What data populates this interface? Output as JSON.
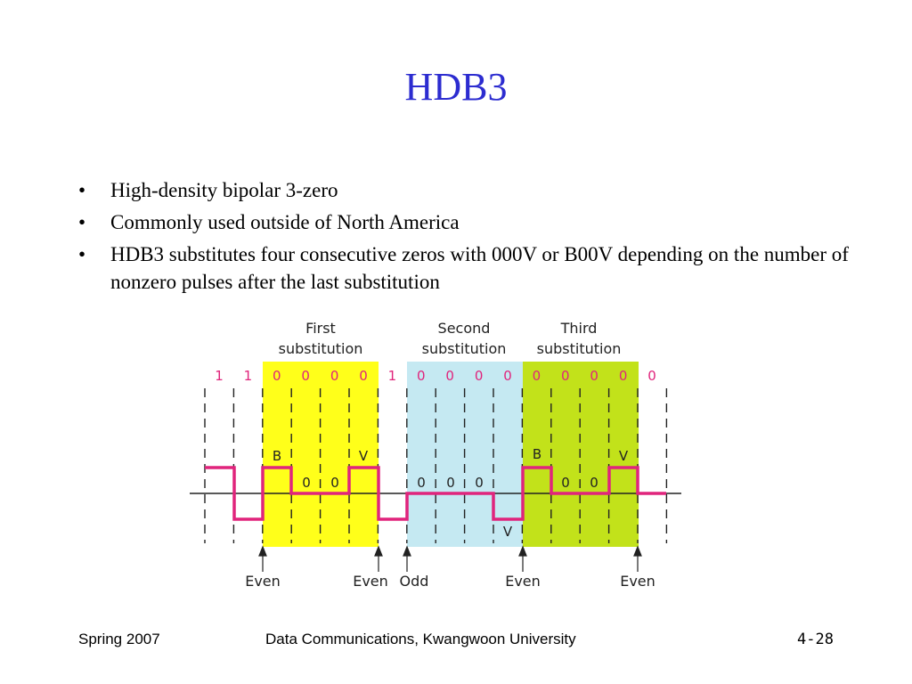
{
  "slide": {
    "title": "HDB3",
    "bullets": [
      "High-density bipolar 3-zero",
      "Commonly used outside of North America",
      "HDB3 substitutes four consecutive zeros with 000V or B00V depending on the number of nonzero pulses after the last substitution"
    ]
  },
  "diagram": {
    "regions": [
      {
        "label_line1": "First",
        "label_line2": "substitution",
        "color": "#ffff1a"
      },
      {
        "label_line1": "Second",
        "label_line2": "substitution",
        "color": "#c5e9f2"
      },
      {
        "label_line1": "Third",
        "label_line2": "substitution",
        "color": "#c2e21a"
      }
    ],
    "bits": [
      "1",
      "1",
      "0",
      "0",
      "0",
      "0",
      "1",
      "0",
      "0",
      "0",
      "0",
      "0",
      "0",
      "0",
      "0",
      "0"
    ],
    "pulse_labels": [
      "B",
      "V",
      "V",
      "B",
      "V"
    ],
    "zero_labels": [
      "0",
      "0",
      "0",
      "0",
      "0",
      "0",
      "0"
    ],
    "parity_labels": [
      "Even",
      "Even",
      "Odd",
      "Even",
      "Even"
    ],
    "colors": {
      "signal": "#e0247c",
      "bits": "#e0247c",
      "dashes": "#222222"
    }
  },
  "footer": {
    "left": "Spring 2007",
    "center": "Data Communications, Kwangwoon University",
    "right": "4-28"
  }
}
